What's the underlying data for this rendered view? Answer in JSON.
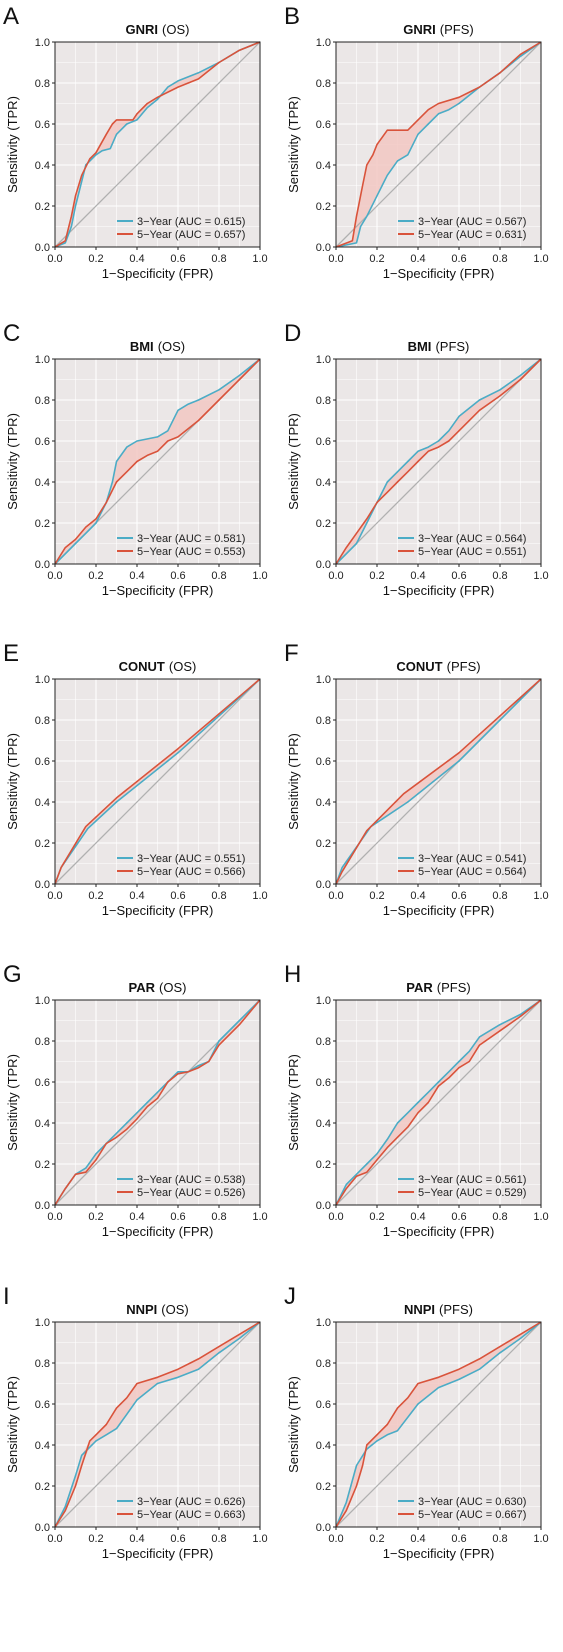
{
  "figure": {
    "colors": {
      "series1": "#4bacc6",
      "series2": "#d9533b",
      "reference": "#b0b0b0",
      "background": "#ebe7e7",
      "between": "#f2c7c2",
      "grid": "#ffffff"
    }
  },
  "chart_data": [
    {
      "panel": "A",
      "type": "line",
      "title": "GNRI",
      "subtitle": "(OS)",
      "xlabel": "1−Specificity (FPR)",
      "ylabel": "Sensitivity (TPR)",
      "xlim": [
        0,
        1
      ],
      "ylim": [
        0,
        1
      ],
      "xticks": [
        "0.0",
        "0.2",
        "0.4",
        "0.6",
        "0.8",
        "1.0"
      ],
      "yticks": [
        "0.0",
        "0.2",
        "0.4",
        "0.6",
        "0.8",
        "1.0"
      ],
      "grid": true,
      "legend_position": "bottom-right",
      "series": [
        {
          "name": "3−Year (AUC = 0.615)",
          "x": [
            0,
            0.05,
            0.08,
            0.1,
            0.13,
            0.15,
            0.2,
            0.23,
            0.27,
            0.3,
            0.35,
            0.4,
            0.45,
            0.5,
            0.55,
            0.6,
            0.7,
            0.8,
            0.9,
            1.0
          ],
          "y": [
            0,
            0.02,
            0.1,
            0.2,
            0.32,
            0.4,
            0.45,
            0.47,
            0.48,
            0.55,
            0.6,
            0.62,
            0.68,
            0.72,
            0.78,
            0.81,
            0.85,
            0.9,
            0.96,
            1.0
          ]
        },
        {
          "name": "5−Year (AUC = 0.657)",
          "x": [
            0,
            0.05,
            0.08,
            0.1,
            0.13,
            0.17,
            0.2,
            0.25,
            0.28,
            0.3,
            0.38,
            0.4,
            0.45,
            0.5,
            0.6,
            0.7,
            0.8,
            0.9,
            1.0
          ],
          "y": [
            0,
            0.03,
            0.15,
            0.25,
            0.35,
            0.43,
            0.46,
            0.55,
            0.6,
            0.62,
            0.62,
            0.65,
            0.7,
            0.73,
            0.78,
            0.82,
            0.9,
            0.96,
            1.0
          ]
        }
      ]
    },
    {
      "panel": "B",
      "type": "line",
      "title": "GNRI",
      "subtitle": "(PFS)",
      "xlabel": "1−Specificity (FPR)",
      "ylabel": "Sensitivity (TPR)",
      "xlim": [
        0,
        1
      ],
      "ylim": [
        0,
        1
      ],
      "xticks": [
        "0.0",
        "0.2",
        "0.4",
        "0.6",
        "0.8",
        "1.0"
      ],
      "yticks": [
        "0.0",
        "0.2",
        "0.4",
        "0.6",
        "0.8",
        "1.0"
      ],
      "grid": true,
      "legend_position": "bottom-right",
      "series": [
        {
          "name": "3−Year (AUC = 0.567)",
          "x": [
            0,
            0.1,
            0.12,
            0.15,
            0.2,
            0.25,
            0.3,
            0.35,
            0.4,
            0.45,
            0.5,
            0.55,
            0.6,
            0.7,
            0.8,
            0.9,
            1.0
          ],
          "y": [
            0,
            0.02,
            0.1,
            0.15,
            0.25,
            0.35,
            0.42,
            0.45,
            0.55,
            0.6,
            0.65,
            0.67,
            0.7,
            0.78,
            0.85,
            0.93,
            1.0
          ]
        },
        {
          "name": "5−Year (AUC = 0.631)",
          "x": [
            0,
            0.08,
            0.1,
            0.13,
            0.15,
            0.18,
            0.2,
            0.25,
            0.35,
            0.4,
            0.45,
            0.5,
            0.6,
            0.7,
            0.8,
            0.9,
            1.0
          ],
          "y": [
            0,
            0.03,
            0.15,
            0.3,
            0.4,
            0.45,
            0.5,
            0.57,
            0.57,
            0.62,
            0.67,
            0.7,
            0.73,
            0.78,
            0.85,
            0.94,
            1.0
          ]
        }
      ]
    },
    {
      "panel": "C",
      "type": "line",
      "title": "BMI",
      "subtitle": "(OS)",
      "xlabel": "1−Specificity (FPR)",
      "ylabel": "Sensitivity (TPR)",
      "xlim": [
        0,
        1
      ],
      "ylim": [
        0,
        1
      ],
      "xticks": [
        "0.0",
        "0.2",
        "0.4",
        "0.6",
        "0.8",
        "1.0"
      ],
      "yticks": [
        "0.0",
        "0.2",
        "0.4",
        "0.6",
        "0.8",
        "1.0"
      ],
      "grid": true,
      "legend_position": "bottom-right",
      "series": [
        {
          "name": "3−Year (AUC = 0.581)",
          "x": [
            0,
            0.05,
            0.1,
            0.15,
            0.2,
            0.25,
            0.28,
            0.3,
            0.35,
            0.4,
            0.5,
            0.55,
            0.6,
            0.65,
            0.7,
            0.8,
            0.9,
            1.0
          ],
          "y": [
            0,
            0.05,
            0.1,
            0.15,
            0.2,
            0.3,
            0.4,
            0.5,
            0.57,
            0.6,
            0.62,
            0.65,
            0.75,
            0.78,
            0.8,
            0.85,
            0.92,
            1.0
          ]
        },
        {
          "name": "5−Year (AUC = 0.553)",
          "x": [
            0,
            0.05,
            0.1,
            0.15,
            0.2,
            0.25,
            0.3,
            0.35,
            0.4,
            0.45,
            0.5,
            0.55,
            0.6,
            0.7,
            0.8,
            0.9,
            1.0
          ],
          "y": [
            0,
            0.08,
            0.12,
            0.18,
            0.22,
            0.3,
            0.4,
            0.45,
            0.5,
            0.53,
            0.55,
            0.6,
            0.62,
            0.7,
            0.8,
            0.9,
            1.0
          ]
        }
      ]
    },
    {
      "panel": "D",
      "type": "line",
      "title": "BMI",
      "subtitle": "(PFS)",
      "xlabel": "1−Specificity (FPR)",
      "ylabel": "Sensitivity (TPR)",
      "xlim": [
        0,
        1
      ],
      "ylim": [
        0,
        1
      ],
      "xticks": [
        "0.0",
        "0.2",
        "0.4",
        "0.6",
        "0.8",
        "1.0"
      ],
      "yticks": [
        "0.0",
        "0.2",
        "0.4",
        "0.6",
        "0.8",
        "1.0"
      ],
      "grid": true,
      "legend_position": "bottom-right",
      "series": [
        {
          "name": "3−Year (AUC = 0.564)",
          "x": [
            0,
            0.05,
            0.1,
            0.15,
            0.2,
            0.25,
            0.3,
            0.35,
            0.4,
            0.45,
            0.5,
            0.55,
            0.6,
            0.7,
            0.8,
            0.9,
            1.0
          ],
          "y": [
            0,
            0.05,
            0.1,
            0.2,
            0.3,
            0.4,
            0.45,
            0.5,
            0.55,
            0.57,
            0.6,
            0.65,
            0.72,
            0.8,
            0.85,
            0.92,
            1.0
          ]
        },
        {
          "name": "5−Year (AUC = 0.551)",
          "x": [
            0,
            0.05,
            0.1,
            0.15,
            0.2,
            0.25,
            0.3,
            0.35,
            0.4,
            0.45,
            0.5,
            0.55,
            0.6,
            0.7,
            0.8,
            0.9,
            1.0
          ],
          "y": [
            0,
            0.08,
            0.15,
            0.22,
            0.3,
            0.35,
            0.4,
            0.45,
            0.5,
            0.55,
            0.57,
            0.6,
            0.65,
            0.75,
            0.82,
            0.9,
            1.0
          ]
        }
      ]
    },
    {
      "panel": "E",
      "type": "line",
      "title": "CONUT",
      "subtitle": "(OS)",
      "xlabel": "1−Specificity (FPR)",
      "ylabel": "Sensitivity (TPR)",
      "xlim": [
        0,
        1
      ],
      "ylim": [
        0,
        1
      ],
      "xticks": [
        "0.0",
        "0.2",
        "0.4",
        "0.6",
        "0.8",
        "1.0"
      ],
      "yticks": [
        "0.0",
        "0.2",
        "0.4",
        "0.6",
        "0.8",
        "1.0"
      ],
      "grid": true,
      "legend_position": "bottom-right",
      "series": [
        {
          "name": "3−Year (AUC = 0.551)",
          "x": [
            0,
            0.03,
            0.16,
            0.3,
            0.6,
            1.0
          ],
          "y": [
            0,
            0.08,
            0.27,
            0.4,
            0.64,
            1.0
          ]
        },
        {
          "name": "5−Year (AUC = 0.566)",
          "x": [
            0,
            0.03,
            0.15,
            0.3,
            0.6,
            1.0
          ],
          "y": [
            0,
            0.08,
            0.28,
            0.42,
            0.66,
            1.0
          ]
        }
      ]
    },
    {
      "panel": "F",
      "type": "line",
      "title": "CONUT",
      "subtitle": "(PFS)",
      "xlabel": "1−Specificity (FPR)",
      "ylabel": "Sensitivity (TPR)",
      "xlim": [
        0,
        1
      ],
      "ylim": [
        0,
        1
      ],
      "xticks": [
        "0.0",
        "0.2",
        "0.4",
        "0.6",
        "0.8",
        "1.0"
      ],
      "yticks": [
        "0.0",
        "0.2",
        "0.4",
        "0.6",
        "0.8",
        "1.0"
      ],
      "grid": true,
      "legend_position": "bottom-right",
      "series": [
        {
          "name": "3−Year (AUC = 0.541)",
          "x": [
            0,
            0.03,
            0.17,
            0.35,
            0.6,
            1.0
          ],
          "y": [
            0,
            0.08,
            0.28,
            0.4,
            0.6,
            1.0
          ]
        },
        {
          "name": "5−Year (AUC = 0.564)",
          "x": [
            0,
            0.03,
            0.15,
            0.33,
            0.6,
            1.0
          ],
          "y": [
            0,
            0.06,
            0.26,
            0.44,
            0.64,
            1.0
          ]
        }
      ]
    },
    {
      "panel": "G",
      "type": "line",
      "title": "PAR",
      "subtitle": "(OS)",
      "xlabel": "1−Specificity (FPR)",
      "ylabel": "Sensitivity (TPR)",
      "xlim": [
        0,
        1
      ],
      "ylim": [
        0,
        1
      ],
      "xticks": [
        "0.0",
        "0.2",
        "0.4",
        "0.6",
        "0.8",
        "1.0"
      ],
      "yticks": [
        "0.0",
        "0.2",
        "0.4",
        "0.6",
        "0.8",
        "1.0"
      ],
      "grid": true,
      "legend_position": "bottom-right",
      "series": [
        {
          "name": "3−Year (AUC = 0.538)",
          "x": [
            0,
            0.05,
            0.1,
            0.15,
            0.2,
            0.25,
            0.3,
            0.35,
            0.4,
            0.45,
            0.5,
            0.55,
            0.6,
            0.65,
            0.7,
            0.75,
            0.8,
            0.9,
            1.0
          ],
          "y": [
            0,
            0.08,
            0.15,
            0.18,
            0.25,
            0.3,
            0.35,
            0.4,
            0.45,
            0.5,
            0.55,
            0.6,
            0.65,
            0.65,
            0.68,
            0.7,
            0.8,
            0.9,
            1.0
          ]
        },
        {
          "name": "5−Year (AUC = 0.526)",
          "x": [
            0,
            0.05,
            0.1,
            0.15,
            0.2,
            0.25,
            0.3,
            0.35,
            0.4,
            0.45,
            0.5,
            0.55,
            0.6,
            0.65,
            0.7,
            0.75,
            0.8,
            0.9,
            1.0
          ],
          "y": [
            0,
            0.08,
            0.15,
            0.16,
            0.22,
            0.3,
            0.33,
            0.37,
            0.42,
            0.48,
            0.52,
            0.6,
            0.64,
            0.65,
            0.67,
            0.7,
            0.78,
            0.88,
            1.0
          ]
        }
      ]
    },
    {
      "panel": "H",
      "type": "line",
      "title": "PAR",
      "subtitle": "(PFS)",
      "xlabel": "1−Specificity (FPR)",
      "ylabel": "Sensitivity (TPR)",
      "xlim": [
        0,
        1
      ],
      "ylim": [
        0,
        1
      ],
      "xticks": [
        "0.0",
        "0.2",
        "0.4",
        "0.6",
        "0.8",
        "1.0"
      ],
      "yticks": [
        "0.0",
        "0.2",
        "0.4",
        "0.6",
        "0.8",
        "1.0"
      ],
      "grid": true,
      "legend_position": "bottom-right",
      "series": [
        {
          "name": "3−Year (AUC = 0.561)",
          "x": [
            0,
            0.05,
            0.1,
            0.15,
            0.2,
            0.25,
            0.3,
            0.35,
            0.4,
            0.45,
            0.5,
            0.55,
            0.6,
            0.65,
            0.7,
            0.8,
            0.9,
            1.0
          ],
          "y": [
            0,
            0.1,
            0.15,
            0.2,
            0.25,
            0.32,
            0.4,
            0.45,
            0.5,
            0.55,
            0.6,
            0.65,
            0.7,
            0.75,
            0.82,
            0.88,
            0.93,
            1.0
          ]
        },
        {
          "name": "5−Year (AUC = 0.529)",
          "x": [
            0,
            0.05,
            0.1,
            0.15,
            0.2,
            0.25,
            0.3,
            0.35,
            0.4,
            0.45,
            0.5,
            0.55,
            0.6,
            0.65,
            0.7,
            0.8,
            0.9,
            1.0
          ],
          "y": [
            0,
            0.08,
            0.14,
            0.16,
            0.22,
            0.28,
            0.33,
            0.38,
            0.45,
            0.5,
            0.58,
            0.62,
            0.67,
            0.7,
            0.78,
            0.85,
            0.92,
            1.0
          ]
        }
      ]
    },
    {
      "panel": "I",
      "type": "line",
      "title": "NNPI",
      "subtitle": "(OS)",
      "xlabel": "1−Specificity (FPR)",
      "ylabel": "Sensitivity (TPR)",
      "xlim": [
        0,
        1
      ],
      "ylim": [
        0,
        1
      ],
      "xticks": [
        "0.0",
        "0.2",
        "0.4",
        "0.6",
        "0.8",
        "1.0"
      ],
      "yticks": [
        "0.0",
        "0.2",
        "0.4",
        "0.6",
        "0.8",
        "1.0"
      ],
      "grid": true,
      "legend_position": "bottom-right",
      "series": [
        {
          "name": "3−Year (AUC = 0.626)",
          "x": [
            0,
            0.05,
            0.1,
            0.13,
            0.2,
            0.25,
            0.3,
            0.35,
            0.4,
            0.5,
            0.6,
            0.7,
            0.8,
            0.9,
            1.0
          ],
          "y": [
            0,
            0.1,
            0.25,
            0.35,
            0.42,
            0.45,
            0.48,
            0.55,
            0.62,
            0.7,
            0.73,
            0.77,
            0.85,
            0.92,
            1.0
          ]
        },
        {
          "name": "5−Year (AUC = 0.663)",
          "x": [
            0,
            0.05,
            0.1,
            0.13,
            0.17,
            0.2,
            0.25,
            0.3,
            0.35,
            0.4,
            0.5,
            0.6,
            0.7,
            0.8,
            0.9,
            1.0
          ],
          "y": [
            0,
            0.08,
            0.2,
            0.3,
            0.42,
            0.45,
            0.5,
            0.58,
            0.63,
            0.7,
            0.73,
            0.77,
            0.82,
            0.88,
            0.94,
            1.0
          ]
        }
      ]
    },
    {
      "panel": "J",
      "type": "line",
      "title": "NNPI",
      "subtitle": "(PFS)",
      "xlabel": "1−Specificity (FPR)",
      "ylabel": "Sensitivity (TPR)",
      "xlim": [
        0,
        1
      ],
      "ylim": [
        0,
        1
      ],
      "xticks": [
        "0.0",
        "0.2",
        "0.4",
        "0.6",
        "0.8",
        "1.0"
      ],
      "yticks": [
        "0.0",
        "0.2",
        "0.4",
        "0.6",
        "0.8",
        "1.0"
      ],
      "grid": true,
      "legend_position": "bottom-right",
      "series": [
        {
          "name": "3−Year (AUC = 0.630)",
          "x": [
            0,
            0.05,
            0.1,
            0.15,
            0.2,
            0.25,
            0.3,
            0.4,
            0.5,
            0.6,
            0.7,
            0.8,
            0.9,
            1.0
          ],
          "y": [
            0,
            0.12,
            0.3,
            0.38,
            0.42,
            0.45,
            0.47,
            0.6,
            0.68,
            0.72,
            0.77,
            0.85,
            0.92,
            1.0
          ]
        },
        {
          "name": "5−Year (AUC = 0.667)",
          "x": [
            0,
            0.05,
            0.1,
            0.13,
            0.15,
            0.2,
            0.25,
            0.3,
            0.35,
            0.4,
            0.5,
            0.6,
            0.7,
            0.8,
            0.9,
            1.0
          ],
          "y": [
            0,
            0.08,
            0.2,
            0.3,
            0.4,
            0.45,
            0.5,
            0.58,
            0.63,
            0.7,
            0.73,
            0.77,
            0.82,
            0.88,
            0.94,
            1.0
          ]
        }
      ]
    }
  ]
}
